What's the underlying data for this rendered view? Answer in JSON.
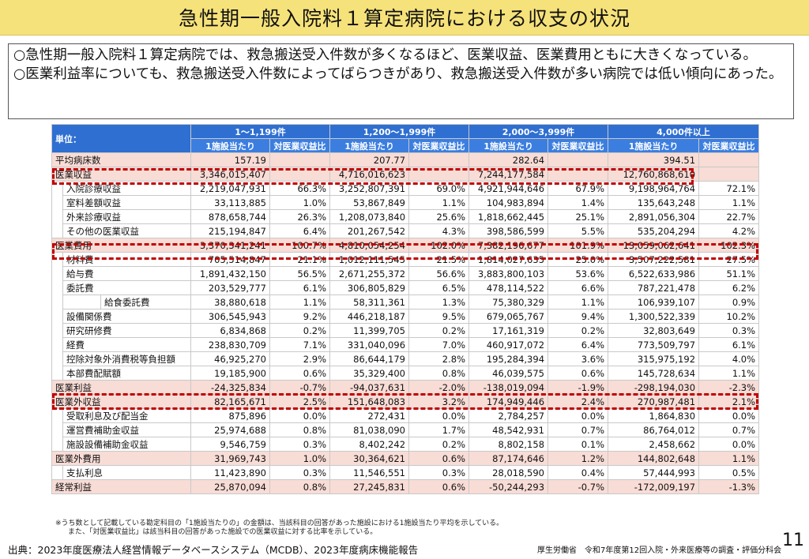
{
  "title": "急性期一般入院料１算定病院における収支の状況",
  "summary": [
    "○急性期一般入院料１算定病院では、救急搬送受入件数が多くなるほど、医業収益、医業費用ともに大きくなっている。",
    "○医業利益率についても、救急搬送受入件数によってばらつきがあり、救急搬送受入件数が多い病院では低い傾向にあった。"
  ],
  "table": {
    "unit_label": "単位：",
    "groups": [
      "1～1,199件",
      "1,200～1,999件",
      "2,000～3,999件",
      "4,000件以上"
    ],
    "sub_headers": [
      "1施設当たり",
      "対医業収益比"
    ],
    "rows": [
      {
        "label": "平均病床数",
        "level": 0,
        "style": "pink",
        "v": [
          "157.19",
          "",
          "207.77",
          "",
          "282.64",
          "",
          "394.51",
          ""
        ]
      },
      {
        "label": "医業収益",
        "level": 0,
        "style": "pink",
        "v": [
          "3,346,015,407",
          "",
          "4,716,016,623",
          "",
          "7,244,177,584",
          "",
          "12,760,868,610",
          ""
        ]
      },
      {
        "label": "入院診療収益",
        "level": 1,
        "style": "white",
        "v": [
          "2,219,047,931",
          "66.3%",
          "3,252,807,391",
          "69.0%",
          "4,921,944,646",
          "67.9%",
          "9,198,964,764",
          "72.1%"
        ]
      },
      {
        "label": "室料差額収益",
        "level": 1,
        "style": "white",
        "v": [
          "33,113,885",
          "1.0%",
          "53,867,849",
          "1.1%",
          "104,983,894",
          "1.4%",
          "135,643,248",
          "1.1%"
        ]
      },
      {
        "label": "外来診療収益",
        "level": 1,
        "style": "white",
        "v": [
          "878,658,744",
          "26.3%",
          "1,208,073,840",
          "25.6%",
          "1,818,662,445",
          "25.1%",
          "2,891,056,304",
          "22.7%"
        ]
      },
      {
        "label": "その他の医業収益",
        "level": 1,
        "style": "white",
        "v": [
          "215,194,847",
          "6.4%",
          "201,267,542",
          "4.3%",
          "398,586,599",
          "5.5%",
          "535,204,294",
          "4.2%"
        ]
      },
      {
        "label": "医業費用",
        "level": 0,
        "style": "pink",
        "v": [
          "3,370,341,241",
          "100.7%",
          "4,810,054,254",
          "102.0%",
          "7,382,196,677",
          "101.9%",
          "13,059,062,641",
          "102.3%"
        ]
      },
      {
        "label": "材料費",
        "level": 1,
        "style": "white",
        "v": [
          "705,514,847",
          "21.1%",
          "1,012,111,545",
          "21.5%",
          "1,814,027,635",
          "25.0%",
          "3,507,222,581",
          "27.5%"
        ]
      },
      {
        "label": "給与費",
        "level": 1,
        "style": "white",
        "v": [
          "1,891,432,150",
          "56.5%",
          "2,671,255,372",
          "56.6%",
          "3,883,800,103",
          "53.6%",
          "6,522,633,986",
          "51.1%"
        ]
      },
      {
        "label": "委託費",
        "level": 1,
        "style": "white",
        "v": [
          "203,529,777",
          "6.1%",
          "306,805,829",
          "6.5%",
          "478,114,522",
          "6.6%",
          "787,221,478",
          "6.2%"
        ]
      },
      {
        "label": "給食委託費",
        "level": 2,
        "style": "white",
        "v": [
          "38,880,618",
          "1.1%",
          "58,311,361",
          "1.3%",
          "75,380,329",
          "1.1%",
          "106,939,107",
          "0.9%"
        ]
      },
      {
        "label": "設備関係費",
        "level": 1,
        "style": "white",
        "v": [
          "306,545,943",
          "9.2%",
          "446,218,187",
          "9.5%",
          "679,065,767",
          "9.4%",
          "1,300,522,339",
          "10.2%"
        ]
      },
      {
        "label": "研究研修費",
        "level": 1,
        "style": "white",
        "v": [
          "6,834,868",
          "0.2%",
          "11,399,705",
          "0.2%",
          "17,161,319",
          "0.2%",
          "32,803,649",
          "0.3%"
        ]
      },
      {
        "label": "経費",
        "level": 1,
        "style": "white",
        "v": [
          "238,830,709",
          "7.1%",
          "331,040,096",
          "7.0%",
          "460,917,072",
          "6.4%",
          "773,509,797",
          "6.1%"
        ]
      },
      {
        "label": "控除対象外消費税等負担額",
        "level": 1,
        "style": "white",
        "v": [
          "46,925,270",
          "2.9%",
          "86,644,179",
          "2.8%",
          "195,284,394",
          "3.6%",
          "315,975,192",
          "4.0%"
        ]
      },
      {
        "label": "本部費配賦額",
        "level": 1,
        "style": "white",
        "v": [
          "19,185,900",
          "0.6%",
          "35,329,400",
          "0.8%",
          "46,039,575",
          "0.6%",
          "145,728,634",
          "1.1%"
        ]
      },
      {
        "label": "医業利益",
        "level": 0,
        "style": "pink",
        "v": [
          "-24,325,834",
          "-0.7%",
          "-94,037,631",
          "-2.0%",
          "-138,019,094",
          "-1.9%",
          "-298,194,030",
          "-2.3%"
        ]
      },
      {
        "label": "医業外収益",
        "level": 0,
        "style": "pink",
        "v": [
          "82,165,671",
          "2.5%",
          "151,648,083",
          "3.2%",
          "174,949,446",
          "2.4%",
          "270,987,481",
          "2.1%"
        ]
      },
      {
        "label": "受取利息及び配当金",
        "level": 1,
        "style": "white",
        "v": [
          "875,896",
          "0.0%",
          "272,431",
          "0.0%",
          "2,784,257",
          "0.0%",
          "1,864,830",
          "0.0%"
        ]
      },
      {
        "label": "運営費補助金収益",
        "level": 1,
        "style": "white",
        "v": [
          "25,974,688",
          "0.8%",
          "81,038,090",
          "1.7%",
          "48,542,931",
          "0.7%",
          "86,764,012",
          "0.7%"
        ]
      },
      {
        "label": "施設設備補助金収益",
        "level": 1,
        "style": "white",
        "v": [
          "9,546,759",
          "0.3%",
          "8,402,242",
          "0.2%",
          "8,802,158",
          "0.1%",
          "2,458,662",
          "0.0%"
        ]
      },
      {
        "label": "医業外費用",
        "level": 0,
        "style": "pink",
        "v": [
          "31,969,743",
          "1.0%",
          "30,364,621",
          "0.6%",
          "87,174,646",
          "1.2%",
          "144,802,648",
          "1.1%"
        ]
      },
      {
        "label": "支払利息",
        "level": 1,
        "style": "white",
        "v": [
          "11,423,890",
          "0.3%",
          "11,546,551",
          "0.3%",
          "28,018,590",
          "0.4%",
          "57,444,993",
          "0.5%"
        ]
      },
      {
        "label": "経常利益",
        "level": 0,
        "style": "pink",
        "v": [
          "25,870,094",
          "0.8%",
          "27,245,831",
          "0.6%",
          "-50,244,293",
          "-0.7%",
          "-172,009,197",
          "-1.3%"
        ]
      }
    ]
  },
  "notes": [
    "※うち数として記載している勘定科目の「1施設当たりの」の金額は、当該科目の回答があった施設における1施設当たり平均を示している。",
    "また、「対医業収益比」は該当科目の回答があった施設での医業収益に対する比率を示している。"
  ],
  "source": "出典：2023年度医療法人経営情報データベースシステム（MCDB）、2023年度病床機能報告",
  "org": "厚生労働省　令和7年度第12回入院・外来医療等の調査・評価分科会",
  "page_number": "11"
}
